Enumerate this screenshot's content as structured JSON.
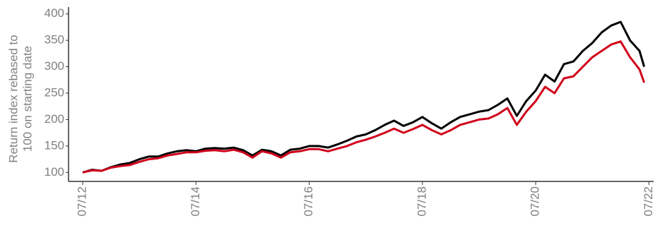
{
  "chart_data": {
    "type": "line",
    "ylabel": [
      "Return index rebased to",
      "100 on starting date"
    ],
    "x": [
      "2012-07",
      "2012-09",
      "2012-11",
      "2013-01",
      "2013-03",
      "2013-05",
      "2013-07",
      "2013-09",
      "2013-11",
      "2014-01",
      "2014-03",
      "2014-05",
      "2014-07",
      "2014-09",
      "2014-11",
      "2015-01",
      "2015-03",
      "2015-05",
      "2015-07",
      "2015-09",
      "2015-11",
      "2016-01",
      "2016-03",
      "2016-05",
      "2016-07",
      "2016-09",
      "2016-11",
      "2017-01",
      "2017-03",
      "2017-05",
      "2017-07",
      "2017-09",
      "2017-11",
      "2018-01",
      "2018-03",
      "2018-05",
      "2018-07",
      "2018-09",
      "2018-11",
      "2019-01",
      "2019-03",
      "2019-05",
      "2019-07",
      "2019-09",
      "2019-11",
      "2020-01",
      "2020-03",
      "2020-05",
      "2020-07",
      "2020-09",
      "2020-11",
      "2021-01",
      "2021-03",
      "2021-05",
      "2021-07",
      "2021-09",
      "2021-11",
      "2022-01",
      "2022-03",
      "2022-05",
      "2022-06"
    ],
    "series": [
      {
        "color": "#000000",
        "values": [
          100,
          105,
          103,
          110,
          115,
          118,
          125,
          130,
          130,
          136,
          140,
          142,
          140,
          145,
          146,
          145,
          147,
          142,
          132,
          143,
          140,
          132,
          143,
          145,
          150,
          150,
          147,
          153,
          160,
          168,
          172,
          180,
          190,
          198,
          188,
          195,
          205,
          193,
          183,
          195,
          205,
          210,
          215,
          218,
          228,
          240,
          207,
          235,
          255,
          285,
          272,
          305,
          310,
          330,
          345,
          365,
          378,
          385,
          350,
          330,
          300
        ]
      },
      {
        "color": "#d0021b",
        "values": [
          100,
          104,
          103,
          109,
          112,
          114,
          120,
          125,
          127,
          132,
          135,
          138,
          138,
          141,
          142,
          140,
          143,
          138,
          128,
          140,
          136,
          128,
          138,
          140,
          144,
          144,
          140,
          145,
          150,
          157,
          162,
          168,
          175,
          183,
          175,
          182,
          190,
          180,
          172,
          180,
          190,
          195,
          200,
          202,
          210,
          222,
          190,
          215,
          235,
          262,
          250,
          278,
          282,
          300,
          318,
          330,
          342,
          348,
          318,
          295,
          270
        ]
      }
    ],
    "xlim": [
      "2012-04",
      "2022-08"
    ],
    "xticks": [
      {
        "value": "2012-07",
        "label": "07/12"
      },
      {
        "value": "2014-07",
        "label": "07/14"
      },
      {
        "value": "2016-07",
        "label": "07/16"
      },
      {
        "value": "2018-07",
        "label": "07/18"
      },
      {
        "value": "2020-07",
        "label": "07/20"
      },
      {
        "value": "2022-07",
        "label": "07/22"
      }
    ],
    "ylim": [
      83,
      413
    ],
    "yticks": [
      100,
      150,
      200,
      250,
      300,
      350,
      400
    ]
  }
}
